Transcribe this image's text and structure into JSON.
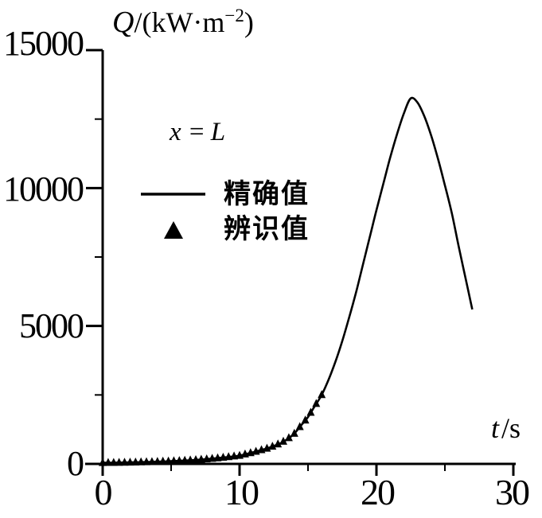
{
  "figure": {
    "background": "#ffffff",
    "ink_color": "#000000"
  },
  "chart_data": {
    "type": "line",
    "title": "",
    "ylabel": "Q/(kW·m⁻²)",
    "ylabel_parts": {
      "symbol": "Q",
      "unit_pre": "/(kW·m",
      "unit_sup": "−2",
      "unit_post": ")"
    },
    "xlabel": "t/s",
    "xlabel_parts": {
      "symbol": "t",
      "rest": "/s"
    },
    "annotation": "x = L",
    "annotation_parts": {
      "lhs": "x",
      "eq": " = ",
      "rhs": "L"
    },
    "xlim": [
      0,
      30
    ],
    "ylim": [
      0,
      15000
    ],
    "grid": false,
    "legend_position": "upper-left-inside",
    "x_major_ticks": [
      0,
      10,
      20,
      30
    ],
    "x_minor_ticks": [
      5,
      15,
      25
    ],
    "y_major_ticks": [
      0,
      5000,
      10000,
      15000
    ],
    "y_minor_ticks": [
      2500,
      7500,
      12500
    ],
    "x_tick_labels": [
      "0",
      "10",
      "20",
      "30"
    ],
    "y_tick_labels": [
      "0",
      "5000",
      "10000",
      "15000"
    ],
    "legend": [
      {
        "label": "精确值",
        "marker": "line"
      },
      {
        "label": "辨识值",
        "marker": "triangle"
      }
    ],
    "series": [
      {
        "name": "精确值",
        "type": "line",
        "points": [
          [
            0,
            40
          ],
          [
            1,
            45
          ],
          [
            2,
            55
          ],
          [
            3,
            65
          ],
          [
            4,
            80
          ],
          [
            5,
            100
          ],
          [
            6,
            120
          ],
          [
            7,
            150
          ],
          [
            8,
            190
          ],
          [
            9,
            240
          ],
          [
            10,
            300
          ],
          [
            10.5,
            360
          ],
          [
            11,
            420
          ],
          [
            11.5,
            490
          ],
          [
            12,
            560
          ],
          [
            12.5,
            650
          ],
          [
            13,
            750
          ],
          [
            13.5,
            900
          ],
          [
            14,
            1100
          ],
          [
            14.5,
            1400
          ],
          [
            15,
            1700
          ],
          [
            15.5,
            2100
          ],
          [
            16,
            2500
          ],
          [
            16.5,
            3050
          ],
          [
            17,
            3700
          ],
          [
            17.5,
            4450
          ],
          [
            18,
            5300
          ],
          [
            18.5,
            6200
          ],
          [
            19,
            7200
          ],
          [
            19.5,
            8200
          ],
          [
            20,
            9200
          ],
          [
            20.5,
            10150
          ],
          [
            21,
            11100
          ],
          [
            21.5,
            11950
          ],
          [
            22,
            12700
          ],
          [
            22.5,
            13250
          ],
          [
            23,
            13100
          ],
          [
            23.5,
            12600
          ],
          [
            24,
            11900
          ],
          [
            24.5,
            11050
          ],
          [
            25,
            10100
          ],
          [
            25.5,
            9100
          ],
          [
            26,
            7900
          ],
          [
            26.5,
            6750
          ],
          [
            27,
            5600
          ]
        ]
      },
      {
        "name": "辨识值",
        "type": "scatter",
        "marker": "filled-triangle-up",
        "points": [
          [
            0,
            40
          ],
          [
            0.4,
            42
          ],
          [
            0.8,
            44
          ],
          [
            1.2,
            47
          ],
          [
            1.6,
            51
          ],
          [
            2,
            55
          ],
          [
            2.4,
            59
          ],
          [
            2.8,
            63
          ],
          [
            3.2,
            68
          ],
          [
            3.6,
            73
          ],
          [
            4,
            80
          ],
          [
            4.4,
            88
          ],
          [
            4.8,
            96
          ],
          [
            5.2,
            104
          ],
          [
            5.6,
            112
          ],
          [
            6,
            120
          ],
          [
            6.4,
            132
          ],
          [
            6.8,
            144
          ],
          [
            7.2,
            158
          ],
          [
            7.6,
            174
          ],
          [
            8,
            190
          ],
          [
            8.4,
            210
          ],
          [
            8.8,
            230
          ],
          [
            9.2,
            252
          ],
          [
            9.6,
            276
          ],
          [
            10,
            300
          ],
          [
            10.4,
            348
          ],
          [
            10.8,
            396
          ],
          [
            11.2,
            448
          ],
          [
            11.6,
            504
          ],
          [
            12,
            560
          ],
          [
            12.4,
            632
          ],
          [
            12.8,
            714
          ],
          [
            13.2,
            810
          ],
          [
            13.6,
            940
          ],
          [
            14,
            1100
          ],
          [
            14.4,
            1340
          ],
          [
            14.8,
            1580
          ],
          [
            15.2,
            1860
          ],
          [
            15.6,
            2180
          ],
          [
            16,
            2500
          ]
        ]
      }
    ],
    "peak": {
      "t": 22.5,
      "Q": 13250
    }
  }
}
